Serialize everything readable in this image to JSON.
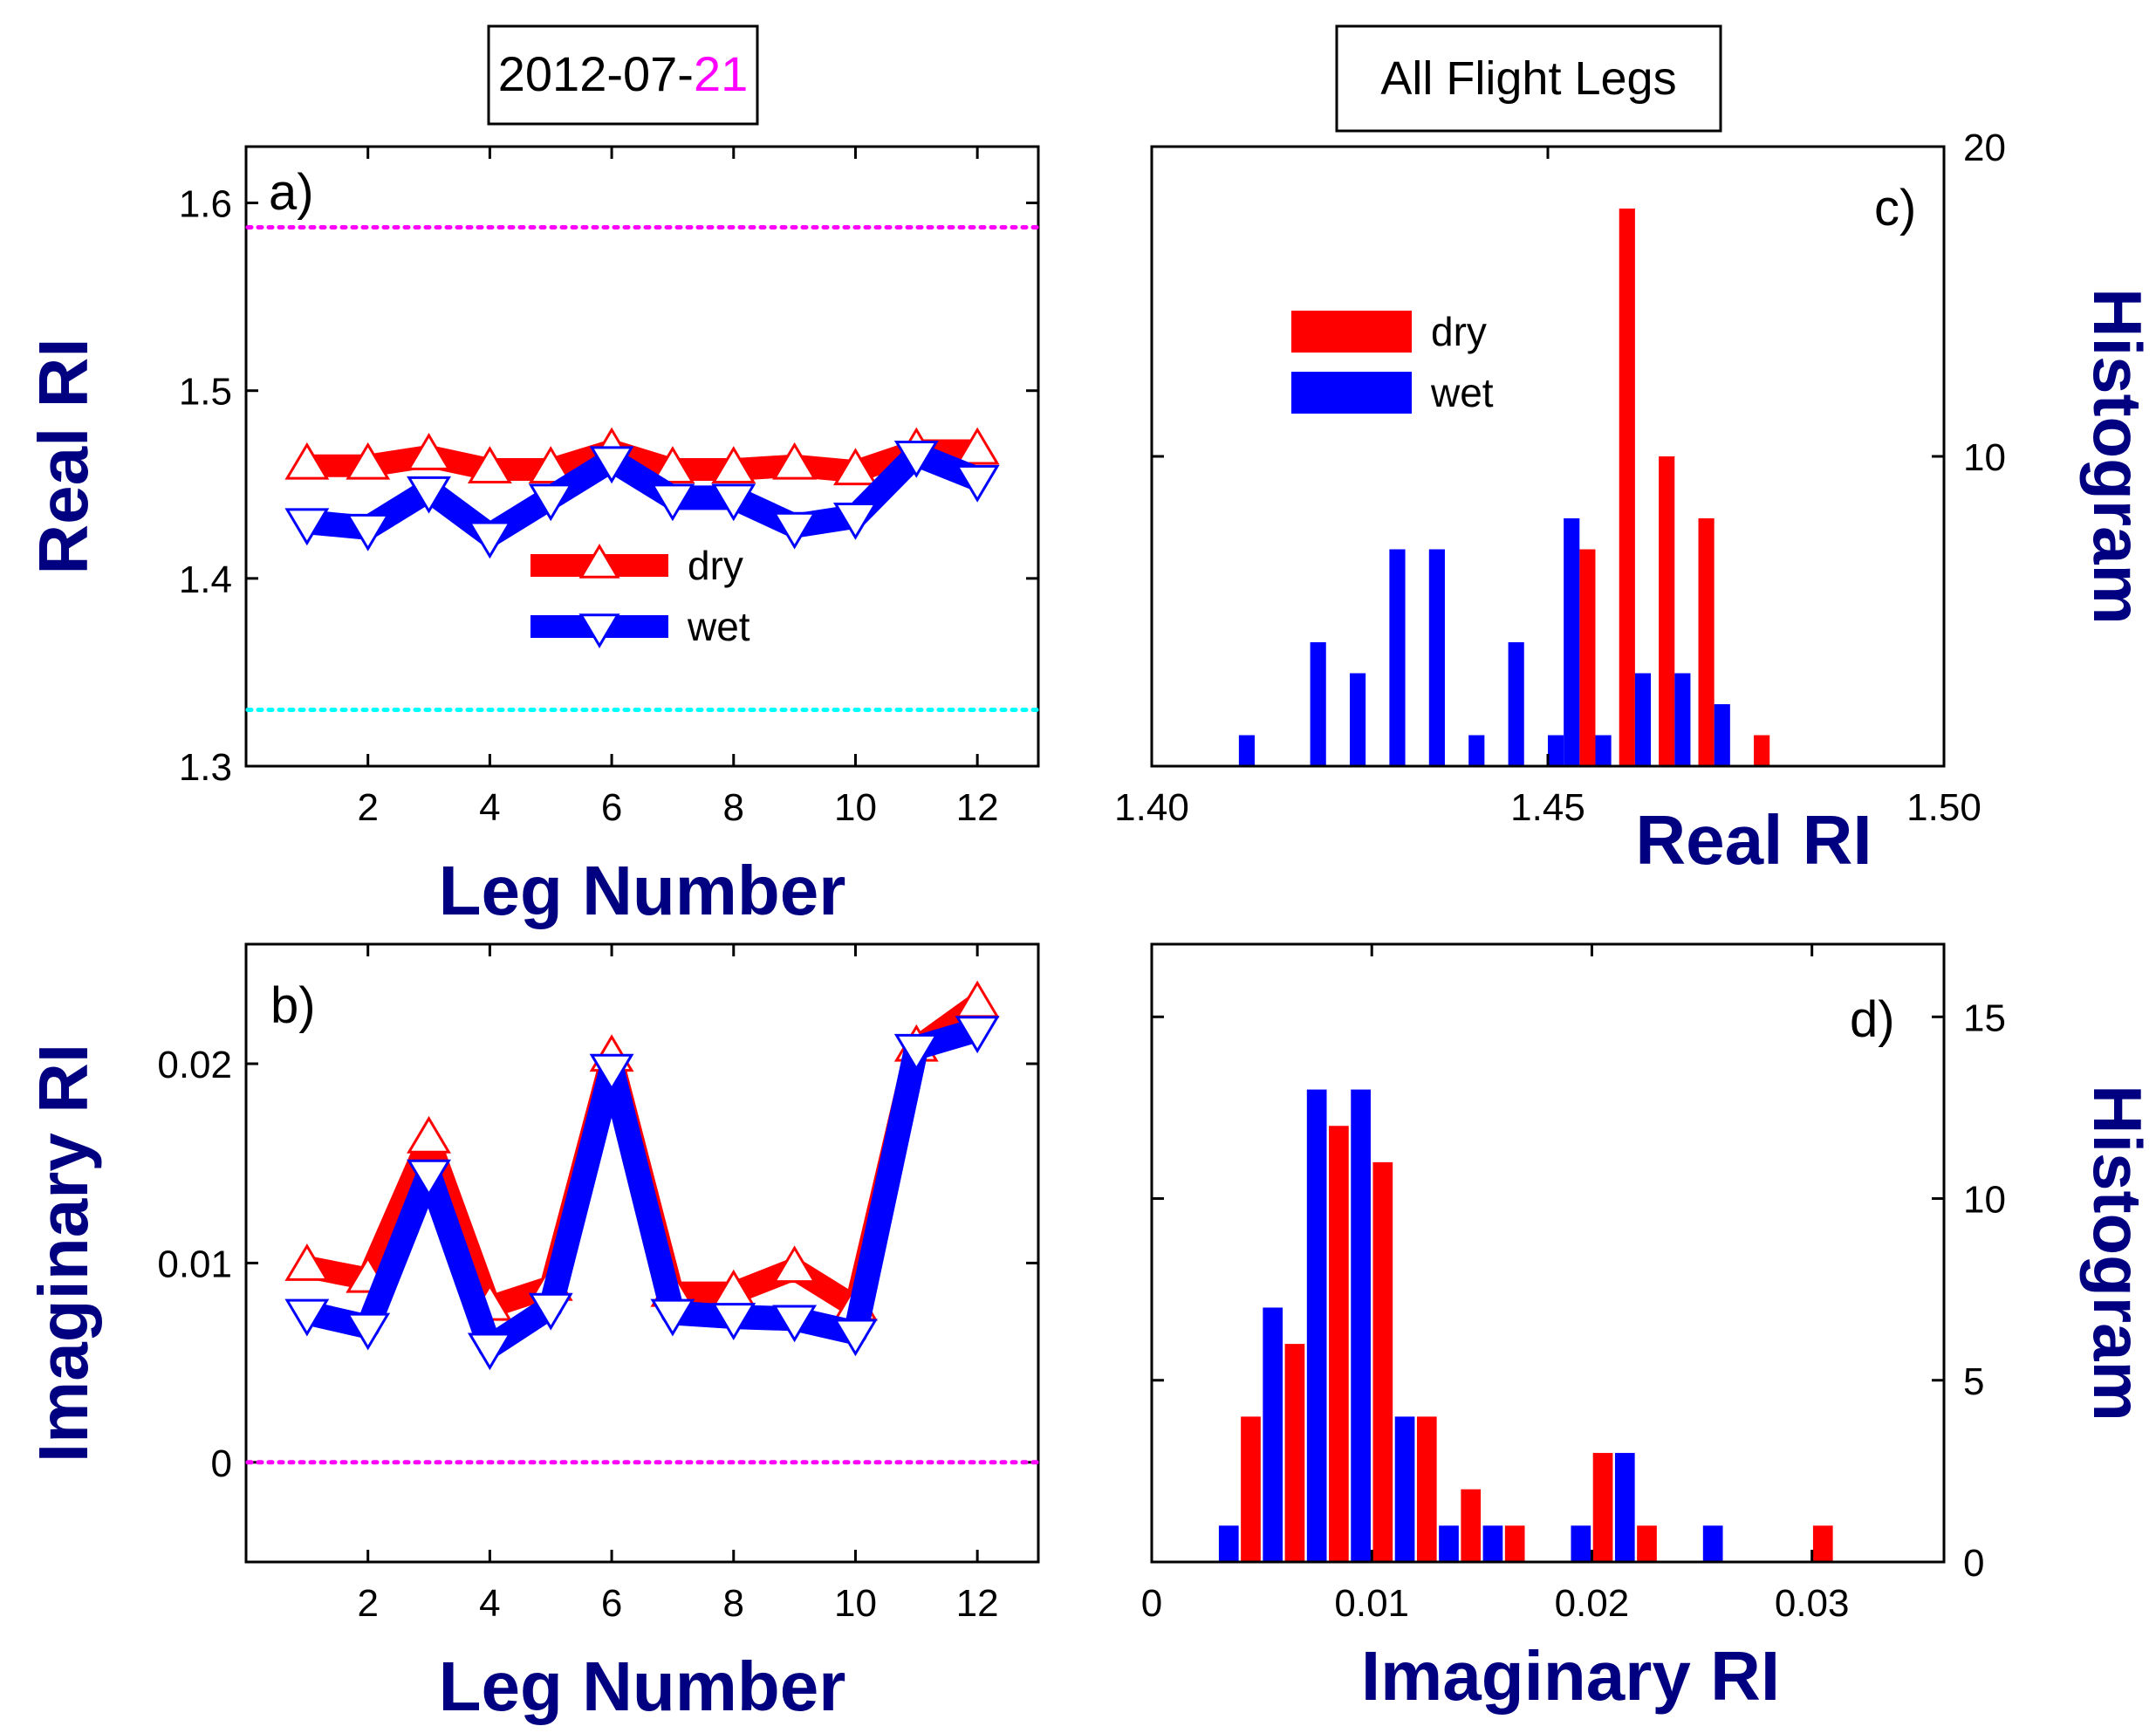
{
  "header": {
    "left_box_prefix": "2012-07-",
    "left_box_day": "21",
    "right_box": "All Flight Legs",
    "day_color": "#ff00ff"
  },
  "colors": {
    "dry": "#ff0000",
    "wet": "#0000ff",
    "axis_label": "#000080",
    "magenta_ref": "#ff00ff",
    "cyan_ref": "#00ffff"
  },
  "chart_data": [
    {
      "id": "a",
      "type": "line",
      "panel_label": "a)",
      "xlabel": "Leg Number",
      "ylabel": "Real RI",
      "xlim": [
        0,
        13
      ],
      "ylim": [
        1.3,
        1.63
      ],
      "xticks": [
        2,
        4,
        6,
        8,
        10,
        12
      ],
      "yticks": [
        1.3,
        1.4,
        1.5,
        1.6
      ],
      "yticks_text": [
        "1.3",
        "1.4",
        "1.5",
        "1.6"
      ],
      "x": [
        1,
        2,
        3,
        4,
        5,
        6,
        7,
        8,
        9,
        10,
        11,
        12
      ],
      "series": [
        {
          "name": "dry",
          "values": [
            1.46,
            1.46,
            1.465,
            1.458,
            1.458,
            1.468,
            1.458,
            1.458,
            1.46,
            1.457,
            1.468,
            1.468
          ]
        },
        {
          "name": "wet",
          "values": [
            1.43,
            1.427,
            1.447,
            1.423,
            1.443,
            1.463,
            1.443,
            1.443,
            1.428,
            1.433,
            1.466,
            1.453
          ]
        }
      ],
      "reference_lines": [
        {
          "y": 1.587,
          "color": "#ff00ff"
        },
        {
          "y": 1.33,
          "color": "#00ffff"
        }
      ],
      "legend": "center"
    },
    {
      "id": "b",
      "type": "line",
      "panel_label": "b)",
      "xlabel": "Leg Number",
      "ylabel": "Imaginary RI",
      "xlim": [
        0,
        13
      ],
      "ylim": [
        -0.005,
        0.026
      ],
      "xticks": [
        2,
        4,
        6,
        8,
        10,
        12
      ],
      "yticks": [
        0,
        0.01,
        0.02
      ],
      "yticks_text": [
        "0",
        "0.01",
        "0.02"
      ],
      "x": [
        1,
        2,
        3,
        4,
        5,
        6,
        7,
        8,
        9,
        10,
        11,
        12
      ],
      "series": [
        {
          "name": "dry",
          "values": [
            0.0098,
            0.0092,
            0.0162,
            0.0078,
            0.0088,
            0.0203,
            0.0085,
            0.0085,
            0.0097,
            0.0078,
            0.0208,
            0.023
          ]
        },
        {
          "name": "wet",
          "values": [
            0.0075,
            0.0068,
            0.0145,
            0.0058,
            0.0078,
            0.0198,
            0.0075,
            0.0073,
            0.0072,
            0.0065,
            0.0208,
            0.0217
          ]
        }
      ],
      "reference_lines": [
        {
          "y": 0.0,
          "color": "#ff00ff"
        }
      ]
    },
    {
      "id": "c",
      "type": "bar",
      "panel_label": "c)",
      "xlabel": "Real RI",
      "ylabel": "Histogram",
      "xlim": [
        1.4,
        1.5
      ],
      "ylim": [
        0,
        20
      ],
      "xticks": [
        1.4,
        1.45,
        1.5
      ],
      "xticks_text": [
        "1.40",
        "1.45",
        "1.50"
      ],
      "yticks": [
        10,
        20
      ],
      "yticks_text": [
        "10",
        "20"
      ],
      "bar_width": 0.002,
      "series": [
        {
          "name": "dry",
          "x": [
            1.455,
            1.46,
            1.465,
            1.47,
            1.477
          ],
          "values": [
            7,
            18,
            10,
            8,
            1
          ]
        },
        {
          "name": "wet",
          "x": [
            1.412,
            1.421,
            1.426,
            1.431,
            1.436,
            1.441,
            1.446,
            1.451,
            1.453,
            1.457,
            1.462,
            1.467,
            1.472
          ],
          "values": [
            1,
            4,
            3,
            7,
            7,
            1,
            4,
            1,
            8,
            1,
            3,
            3,
            2
          ]
        }
      ],
      "legend": "top-left"
    },
    {
      "id": "d",
      "type": "bar",
      "panel_label": "d)",
      "xlabel": "Imaginary RI",
      "ylabel": "Histogram",
      "xlim": [
        0,
        0.036
      ],
      "ylim": [
        0,
        17
      ],
      "xticks": [
        0,
        0.01,
        0.02,
        0.03
      ],
      "xticks_text": [
        "0",
        "0.01",
        "0.02",
        "0.03"
      ],
      "yticks": [
        0,
        5,
        10,
        15
      ],
      "yticks_text": [
        "0",
        "5",
        "10",
        "15"
      ],
      "bar_width": 0.0009,
      "series": [
        {
          "name": "dry",
          "x": [
            0.0045,
            0.0065,
            0.0085,
            0.0105,
            0.0125,
            0.0145,
            0.0165,
            0.0205,
            0.0225,
            0.0305
          ],
          "values": [
            4,
            6,
            12,
            11,
            4,
            2,
            1,
            3,
            1,
            1
          ]
        },
        {
          "name": "wet",
          "x": [
            0.0035,
            0.0055,
            0.0075,
            0.0095,
            0.0115,
            0.0135,
            0.0155,
            0.0195,
            0.0215,
            0.0255
          ],
          "values": [
            1,
            7,
            13,
            13,
            4,
            1,
            1,
            1,
            3,
            1
          ]
        }
      ]
    }
  ]
}
